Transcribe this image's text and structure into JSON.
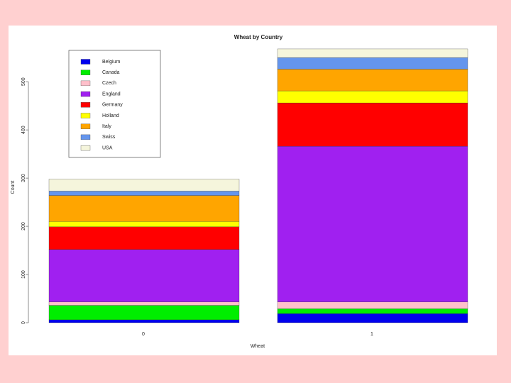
{
  "chart_data": {
    "type": "stacked_bar",
    "title": "Wheat by Country",
    "xlabel": "Wheat",
    "ylabel": "Count",
    "categories": [
      "0",
      "1"
    ],
    "series": [
      {
        "name": "Belgium",
        "color": "#0000ee",
        "values": [
          6,
          19
        ]
      },
      {
        "name": "Canada",
        "color": "#00ee00",
        "values": [
          30,
          10
        ]
      },
      {
        "name": "Czech",
        "color": "#ffc0cb",
        "values": [
          7,
          14
        ]
      },
      {
        "name": "England",
        "color": "#a020f0",
        "values": [
          109,
          323
        ]
      },
      {
        "name": "Germany",
        "color": "#ff0000",
        "values": [
          47,
          90
        ]
      },
      {
        "name": "Holland",
        "color": "#ffff00",
        "values": [
          11,
          25
        ]
      },
      {
        "name": "Italy",
        "color": "#ffa500",
        "values": [
          54,
          45
        ]
      },
      {
        "name": "Swiss",
        "color": "#6495ed",
        "values": [
          9,
          24
        ]
      },
      {
        "name": "USA",
        "color": "#f5f5dc",
        "values": [
          25,
          18
        ]
      }
    ],
    "ylim": [
      0,
      590
    ],
    "yticks": [
      0,
      100,
      200,
      300,
      400,
      500
    ],
    "legend": "top-left"
  }
}
